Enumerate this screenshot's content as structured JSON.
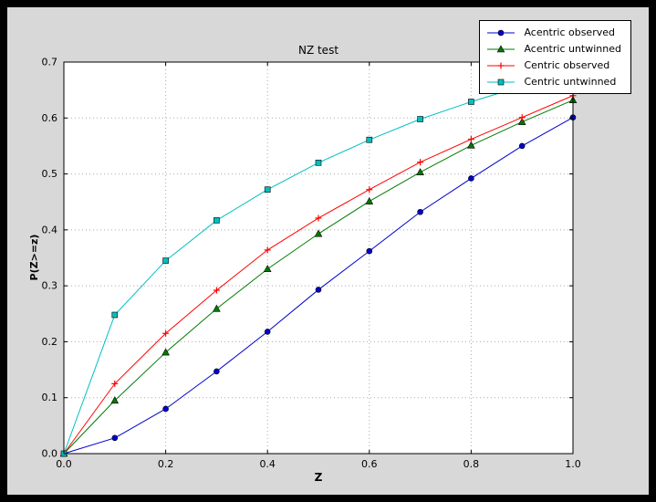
{
  "window": {
    "frame_color": "#000000",
    "figure_background": "#d8d8d8",
    "plot_background": "#ffffff"
  },
  "chart_data": {
    "type": "line",
    "title": "NZ test",
    "xlabel": "Z",
    "ylabel": "P(Z>=z)",
    "xlim": [
      0.0,
      1.0
    ],
    "ylim": [
      0.0,
      0.7
    ],
    "xticks": [
      0.0,
      0.2,
      0.4,
      0.6,
      0.8,
      1.0
    ],
    "yticks": [
      0.0,
      0.1,
      0.2,
      0.3,
      0.4,
      0.5,
      0.6,
      0.7
    ],
    "grid": "dotted",
    "grid_color": "#ababab",
    "legend_position": "upper right",
    "x": [
      0.0,
      0.1,
      0.2,
      0.3,
      0.4,
      0.5,
      0.6,
      0.7,
      0.8,
      0.9,
      1.0
    ],
    "series": [
      {
        "name": "Acentric observed",
        "color": "#0000cd",
        "marker": "circle",
        "values": [
          0.0,
          0.028,
          0.08,
          0.147,
          0.218,
          0.293,
          0.362,
          0.432,
          0.492,
          0.55,
          0.601
        ]
      },
      {
        "name": "Acentric untwinned",
        "color": "#007a00",
        "marker": "triangle-up",
        "values": [
          0.0,
          0.095,
          0.181,
          0.259,
          0.33,
          0.393,
          0.451,
          0.503,
          0.551,
          0.593,
          0.632
        ]
      },
      {
        "name": "Centric observed",
        "color": "#ff0000",
        "marker": "plus",
        "values": [
          0.0,
          0.125,
          0.215,
          0.292,
          0.364,
          0.421,
          0.472,
          0.521,
          0.562,
          0.601,
          0.64
        ]
      },
      {
        "name": "Centric untwinned",
        "color": "#00bfbf",
        "marker": "square",
        "values": [
          0.0,
          0.248,
          0.345,
          0.417,
          0.472,
          0.52,
          0.561,
          0.598,
          0.629,
          0.657,
          0.683
        ]
      }
    ]
  }
}
